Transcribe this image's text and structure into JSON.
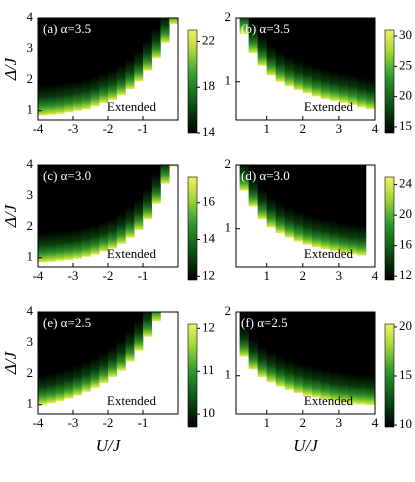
{
  "chart_data": [
    {
      "type": "heatmap",
      "label": "(a) α=3.5",
      "annotation": "Extended",
      "ylabel": "Δ/J",
      "x": [
        -4,
        -3.75,
        -3.5,
        -3.25,
        -3,
        -2.75,
        -2.5,
        -2.25,
        -2,
        -1.75,
        -1.5,
        -1.25,
        -1,
        -0.75,
        -0.5,
        -0.25
      ],
      "boundary": [
        0.85,
        0.87,
        0.9,
        0.95,
        1.0,
        1.05,
        1.15,
        1.25,
        1.35,
        1.5,
        1.7,
        1.95,
        2.3,
        2.7,
        3.2,
        3.8
      ],
      "xlim": [
        -4,
        0
      ],
      "ylim": [
        0.7,
        4
      ],
      "xticks": [
        -4,
        -3,
        -2,
        -1
      ],
      "yticks": [
        1,
        2,
        3,
        4
      ],
      "clim": [
        14,
        23
      ],
      "cticks": [
        14,
        18,
        22
      ]
    },
    {
      "type": "heatmap",
      "label": "(b) α=3.5",
      "annotation": "Extended",
      "x": [
        0.25,
        0.5,
        0.75,
        1,
        1.25,
        1.5,
        1.75,
        2,
        2.25,
        2.5,
        2.75,
        3,
        3.25,
        3.5,
        3.75
      ],
      "boundary": [
        1.75,
        1.45,
        1.25,
        1.1,
        1.0,
        0.93,
        0.87,
        0.82,
        0.77,
        0.73,
        0.7,
        0.67,
        0.64,
        0.6,
        0.57
      ],
      "xlim": [
        0.15,
        4
      ],
      "ylim": [
        0.4,
        2
      ],
      "xticks": [
        1,
        2,
        3,
        4
      ],
      "yticks": [
        1,
        2
      ],
      "clim": [
        14,
        31
      ],
      "cticks": [
        15,
        20,
        25,
        30
      ]
    },
    {
      "type": "heatmap",
      "label": "(c) α=3.0",
      "annotation": "Extended",
      "ylabel": "Δ/J",
      "x": [
        -4,
        -3.75,
        -3.5,
        -3.25,
        -3,
        -2.75,
        -2.5,
        -2.25,
        -2,
        -1.75,
        -1.5,
        -1.25,
        -1,
        -0.75,
        -0.5,
        -0.25
      ],
      "boundary": [
        0.85,
        0.87,
        0.9,
        0.93,
        0.97,
        1.03,
        1.1,
        1.2,
        1.3,
        1.45,
        1.65,
        1.9,
        2.25,
        2.75,
        3.4,
        3.95
      ],
      "xlim": [
        -4,
        0
      ],
      "ylim": [
        0.7,
        4
      ],
      "xticks": [
        -4,
        -3,
        -2,
        -1
      ],
      "yticks": [
        1,
        2,
        3,
        4
      ],
      "clim": [
        11.8,
        17.4
      ],
      "cticks": [
        12,
        14,
        16
      ]
    },
    {
      "type": "heatmap",
      "label": "(d) α=3.0",
      "annotation": "Extended",
      "x": [
        0.25,
        0.5,
        0.75,
        1,
        1.25,
        1.5,
        1.75,
        2,
        2.25,
        2.5,
        2.75,
        3,
        3.25,
        3.5,
        3.75
      ],
      "boundary": [
        1.6,
        1.35,
        1.15,
        1.02,
        0.93,
        0.86,
        0.8,
        0.75,
        0.71,
        0.68,
        0.65,
        0.62,
        0.6,
        0.58,
        null
      ],
      "xlim": [
        0.15,
        4
      ],
      "ylim": [
        0.4,
        2
      ],
      "xticks": [
        1,
        2,
        3,
        4
      ],
      "yticks": [
        1,
        2
      ],
      "clim": [
        11.5,
        25
      ],
      "cticks": [
        12,
        16,
        20,
        24
      ]
    },
    {
      "type": "heatmap",
      "label": "(e) α=2.5",
      "annotation": "Extended",
      "ylabel": "Δ/J",
      "xlabel": "U/J",
      "x": [
        -4,
        -3.75,
        -3.5,
        -3.25,
        -3,
        -2.75,
        -2.5,
        -2.25,
        -2,
        -1.75,
        -1.5,
        -1.25,
        -1,
        -0.75,
        -0.5,
        -0.25
      ],
      "boundary": [
        1.0,
        1.05,
        1.12,
        1.2,
        1.3,
        1.42,
        1.55,
        1.7,
        1.9,
        2.1,
        2.4,
        2.75,
        3.2,
        3.7,
        null,
        null
      ],
      "xlim": [
        -4,
        0
      ],
      "ylim": [
        0.7,
        4
      ],
      "xticks": [
        -4,
        -3,
        -2,
        -1
      ],
      "yticks": [
        1,
        2,
        3,
        4
      ],
      "clim": [
        9.7,
        12.1
      ],
      "cticks": [
        10,
        11,
        12
      ]
    },
    {
      "type": "heatmap",
      "label": "(f) α=2.5",
      "annotation": "Extended",
      "xlabel": "U/J",
      "x": [
        0.25,
        0.5,
        0.75,
        1,
        1.25,
        1.5,
        1.75,
        2,
        2.25,
        2.5,
        2.75,
        3,
        3.25,
        3.5,
        3.75
      ],
      "boundary": [
        1.3,
        1.1,
        0.98,
        0.9,
        0.83,
        0.78,
        0.73,
        0.69,
        0.66,
        0.63,
        0.6,
        0.58,
        0.56,
        0.55,
        0.54
      ],
      "xlim": [
        0.15,
        4
      ],
      "ylim": [
        0.4,
        2
      ],
      "xticks": [
        1,
        2,
        3,
        4
      ],
      "yticks": [
        1,
        2
      ],
      "clim": [
        9.8,
        20.3
      ],
      "cticks": [
        10,
        15,
        20
      ]
    }
  ]
}
